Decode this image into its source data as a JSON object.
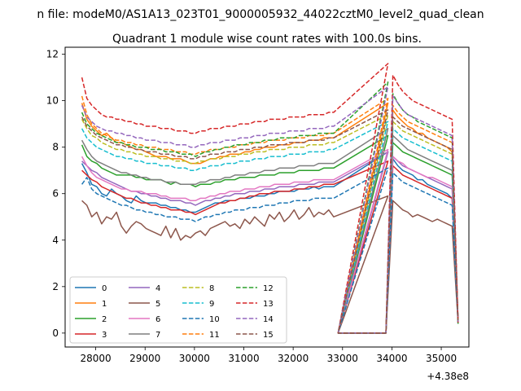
{
  "figure": {
    "suptitle": "n file: modeM0/AS1A13_023T01_9000005932_44022cztM0_level2_quad_clean",
    "title": "Quadrant 1 module wise count rates with 100.0s bins."
  },
  "chart_data": {
    "type": "line",
    "title": "Quadrant 1 module wise count rates with 100.0s bins.",
    "xlabel": "",
    "ylabel": "",
    "x_offset_label": "+4.38e8",
    "xlim": [
      27380,
      35560
    ],
    "ylim": [
      -0.6,
      12.3
    ],
    "xticks": [
      28000,
      29000,
      30000,
      31000,
      32000,
      33000,
      34000,
      35000
    ],
    "yticks": [
      0,
      2,
      4,
      6,
      8,
      10,
      12
    ],
    "grid": false,
    "legend": {
      "placement": "lower-left",
      "columns": 4
    },
    "bin_s": 100,
    "segments": [
      {
        "x_start": 27720,
        "x_end": 32870
      },
      {
        "x_start": 33920,
        "x_end": 35320
      }
    ],
    "x_notes": "x values are seconds relative to 4.38e8, sampled every 100 s within each segment; count rate is 0 between segments.",
    "series": [
      {
        "name": "0",
        "color": "#1f77b4",
        "style": "solid",
        "values": [
          7.3,
          6.9,
          6.4,
          6.3,
          6.0,
          5.9,
          6.2,
          6.0,
          5.9,
          5.7,
          5.6,
          5.9,
          5.7,
          5.6,
          5.6,
          5.6,
          5.5,
          5.5,
          5.4,
          5.4,
          5.3,
          5.3,
          5.2,
          5.2,
          5.3,
          5.4,
          5.5,
          5.6,
          5.6,
          5.7,
          5.7,
          5.7,
          5.8,
          5.8,
          5.8,
          5.9,
          5.9,
          5.9,
          6.0,
          6.0,
          6.1,
          6.1,
          6.1,
          6.1,
          6.2,
          6.2,
          6.2,
          6.3,
          6.2,
          6.3,
          6.3,
          6.3,
          7.8,
          7.5,
          7.2,
          7.0,
          6.9,
          6.8,
          6.6,
          6.6,
          6.4,
          6.3,
          6.2,
          6.1,
          6.0,
          5.8
        ]
      },
      {
        "name": "1",
        "color": "#ff7f0e",
        "style": "solid",
        "values": [
          9.9,
          9.2,
          8.9,
          8.7,
          8.5,
          8.6,
          8.4,
          8.2,
          8.2,
          8.1,
          8.0,
          7.9,
          7.9,
          7.8,
          7.7,
          7.6,
          7.6,
          7.6,
          7.5,
          7.5,
          7.5,
          7.4,
          7.3,
          7.3,
          7.3,
          7.4,
          7.5,
          7.5,
          7.6,
          7.6,
          7.7,
          7.7,
          7.7,
          7.8,
          7.8,
          7.9,
          7.9,
          8.0,
          8.0,
          8.0,
          8.1,
          8.1,
          8.1,
          8.2,
          8.2,
          8.2,
          8.3,
          8.3,
          8.3,
          8.4,
          8.4,
          8.4,
          9.9,
          9.6,
          9.3,
          9.1,
          8.9,
          8.8,
          8.6,
          8.6,
          8.4,
          8.3,
          8.2,
          8.1,
          8.0,
          7.8
        ]
      },
      {
        "name": "2",
        "color": "#2ca02c",
        "style": "solid",
        "values": [
          8.1,
          7.6,
          7.4,
          7.3,
          7.1,
          7.0,
          6.9,
          6.8,
          6.8,
          6.8,
          6.8,
          6.7,
          6.7,
          6.6,
          6.6,
          6.6,
          6.6,
          6.5,
          6.4,
          6.5,
          6.4,
          6.4,
          6.4,
          6.3,
          6.4,
          6.4,
          6.4,
          6.5,
          6.5,
          6.6,
          6.6,
          6.6,
          6.7,
          6.7,
          6.7,
          6.7,
          6.8,
          6.8,
          6.8,
          6.8,
          6.9,
          6.9,
          6.9,
          6.9,
          7.0,
          7.0,
          7.0,
          7.0,
          7.0,
          7.1,
          7.1,
          7.1,
          8.5,
          8.2,
          8.0,
          7.8,
          7.7,
          7.6,
          7.5,
          7.4,
          7.3,
          7.2,
          7.1,
          7.0,
          6.9,
          6.8
        ]
      },
      {
        "name": "3",
        "color": "#d62728",
        "style": "solid",
        "values": [
          7.0,
          6.8,
          6.6,
          6.5,
          6.3,
          6.2,
          6.1,
          6.0,
          5.9,
          5.8,
          5.8,
          5.7,
          5.6,
          5.6,
          5.5,
          5.5,
          5.4,
          5.4,
          5.3,
          5.3,
          5.3,
          5.2,
          5.2,
          5.1,
          5.2,
          5.3,
          5.4,
          5.5,
          5.6,
          5.6,
          5.7,
          5.7,
          5.8,
          5.8,
          5.9,
          5.9,
          6.0,
          6.0,
          6.0,
          6.1,
          6.1,
          6.1,
          6.1,
          6.2,
          6.2,
          6.2,
          6.3,
          6.3,
          6.3,
          6.4,
          6.4,
          6.4,
          7.4,
          7.2,
          7.0,
          6.8,
          6.7,
          6.6,
          6.5,
          6.4,
          6.3,
          6.2,
          6.1,
          6.0,
          5.9,
          5.8
        ]
      },
      {
        "name": "4",
        "color": "#9467bd",
        "style": "solid",
        "values": [
          7.4,
          7.2,
          7.0,
          6.9,
          6.7,
          6.6,
          6.5,
          6.4,
          6.3,
          6.2,
          6.1,
          6.1,
          6.0,
          6.0,
          5.9,
          5.9,
          5.8,
          5.8,
          5.7,
          5.7,
          5.7,
          5.6,
          5.6,
          5.5,
          5.6,
          5.7,
          5.7,
          5.8,
          5.8,
          5.9,
          5.9,
          6.0,
          6.0,
          6.0,
          6.1,
          6.1,
          6.1,
          6.2,
          6.2,
          6.2,
          6.3,
          6.3,
          6.3,
          6.3,
          6.4,
          6.4,
          6.4,
          6.4,
          6.5,
          6.5,
          6.5,
          6.5,
          7.8,
          7.6,
          7.4,
          7.2,
          7.1,
          7.0,
          6.9,
          6.8,
          6.7,
          6.6,
          6.5,
          6.4,
          6.3,
          6.2
        ]
      },
      {
        "name": "5",
        "color": "#8c564b",
        "style": "solid",
        "values": [
          5.7,
          5.5,
          5.0,
          5.2,
          4.7,
          5.0,
          4.9,
          5.2,
          4.6,
          4.3,
          4.6,
          4.8,
          4.7,
          4.5,
          4.4,
          4.3,
          4.2,
          4.6,
          4.1,
          4.5,
          4.0,
          4.2,
          4.1,
          4.3,
          4.4,
          4.2,
          4.5,
          4.6,
          4.7,
          4.8,
          4.6,
          4.7,
          4.5,
          4.9,
          4.7,
          5.0,
          4.8,
          4.6,
          5.1,
          4.9,
          5.2,
          4.8,
          5.0,
          5.3,
          4.9,
          5.1,
          5.4,
          5.0,
          5.2,
          5.1,
          5.3,
          5.0,
          5.9,
          5.7,
          5.5,
          5.3,
          5.2,
          5.0,
          5.1,
          5.0,
          4.9,
          4.8,
          4.9,
          4.8,
          4.7,
          4.6
        ]
      },
      {
        "name": "6",
        "color": "#e377c2",
        "style": "solid",
        "values": [
          7.6,
          7.2,
          6.9,
          6.7,
          6.6,
          6.5,
          6.4,
          6.3,
          6.2,
          6.2,
          6.1,
          6.1,
          6.1,
          6.0,
          6.0,
          6.0,
          5.9,
          5.9,
          5.8,
          5.8,
          5.8,
          5.8,
          5.7,
          5.7,
          5.8,
          5.8,
          5.9,
          5.9,
          6.0,
          6.0,
          6.1,
          6.1,
          6.1,
          6.2,
          6.2,
          6.2,
          6.3,
          6.3,
          6.3,
          6.4,
          6.4,
          6.4,
          6.4,
          6.5,
          6.5,
          6.5,
          6.5,
          6.6,
          6.6,
          6.6,
          6.6,
          6.6,
          7.9,
          7.6,
          7.4,
          7.3,
          7.1,
          7.0,
          6.9,
          6.8,
          6.7,
          6.7,
          6.6,
          6.5,
          6.4,
          6.3
        ]
      },
      {
        "name": "7",
        "color": "#7f7f7f",
        "style": "solid",
        "values": [
          8.3,
          7.9,
          7.6,
          7.4,
          7.3,
          7.2,
          7.1,
          7.0,
          6.9,
          6.9,
          6.8,
          6.8,
          6.7,
          6.7,
          6.6,
          6.6,
          6.6,
          6.5,
          6.5,
          6.5,
          6.4,
          6.4,
          6.4,
          6.4,
          6.5,
          6.5,
          6.6,
          6.6,
          6.6,
          6.7,
          6.7,
          6.8,
          6.8,
          6.8,
          6.9,
          6.9,
          6.9,
          7.0,
          7.0,
          7.0,
          7.1,
          7.1,
          7.1,
          7.1,
          7.2,
          7.2,
          7.2,
          7.2,
          7.3,
          7.3,
          7.3,
          7.3,
          8.8,
          8.5,
          8.3,
          8.1,
          7.9,
          7.8,
          7.7,
          7.6,
          7.5,
          7.4,
          7.3,
          7.2,
          7.1,
          7.0
        ]
      },
      {
        "name": "8",
        "color": "#bcbd22",
        "style": "dashed",
        "values": [
          9.2,
          8.8,
          8.5,
          8.4,
          8.2,
          8.1,
          8.0,
          7.9,
          7.9,
          7.8,
          7.8,
          7.7,
          7.7,
          7.6,
          7.6,
          7.6,
          7.5,
          7.5,
          7.5,
          7.4,
          7.4,
          7.4,
          7.3,
          7.3,
          7.4,
          7.4,
          7.5,
          7.5,
          7.5,
          7.6,
          7.6,
          7.6,
          7.7,
          7.7,
          7.7,
          7.8,
          7.8,
          7.8,
          7.9,
          7.9,
          7.9,
          7.9,
          8.0,
          8.0,
          8.0,
          8.0,
          8.1,
          8.1,
          8.1,
          8.1,
          8.2,
          8.2,
          9.4,
          9.1,
          8.9,
          8.7,
          8.6,
          8.5,
          8.4,
          8.3,
          8.2,
          8.1,
          8.0,
          7.9,
          7.8,
          7.7
        ]
      },
      {
        "name": "9",
        "color": "#17becf",
        "style": "dashed",
        "values": [
          8.8,
          8.4,
          8.2,
          8.0,
          7.9,
          7.8,
          7.7,
          7.6,
          7.6,
          7.5,
          7.5,
          7.4,
          7.4,
          7.3,
          7.3,
          7.3,
          7.2,
          7.2,
          7.2,
          7.1,
          7.1,
          7.1,
          7.0,
          7.0,
          7.1,
          7.1,
          7.2,
          7.2,
          7.2,
          7.3,
          7.3,
          7.3,
          7.4,
          7.4,
          7.4,
          7.5,
          7.5,
          7.5,
          7.6,
          7.6,
          7.6,
          7.6,
          7.7,
          7.7,
          7.7,
          7.7,
          7.8,
          7.8,
          7.8,
          7.8,
          7.9,
          7.9,
          9.1,
          8.8,
          8.6,
          8.4,
          8.3,
          8.2,
          8.1,
          8.0,
          7.9,
          7.8,
          7.7,
          7.6,
          7.5,
          7.4
        ]
      },
      {
        "name": "10",
        "color": "#1f77b4",
        "style": "dashed",
        "values": [
          6.4,
          6.7,
          6.2,
          6.0,
          5.9,
          5.8,
          5.7,
          5.6,
          5.5,
          5.5,
          5.4,
          5.3,
          5.3,
          5.2,
          5.2,
          5.1,
          5.1,
          5.0,
          5.0,
          5.0,
          4.9,
          4.9,
          4.9,
          4.8,
          4.9,
          5.0,
          5.0,
          5.1,
          5.1,
          5.2,
          5.2,
          5.3,
          5.3,
          5.3,
          5.4,
          5.4,
          5.4,
          5.5,
          5.5,
          5.5,
          5.6,
          5.6,
          5.6,
          5.7,
          5.7,
          5.7,
          5.7,
          5.8,
          5.8,
          5.8,
          5.8,
          5.8,
          7.1,
          6.9,
          6.7,
          6.5,
          6.4,
          6.3,
          6.2,
          6.1,
          6.0,
          5.9,
          5.8,
          5.7,
          5.6,
          5.5
        ]
      },
      {
        "name": "11",
        "color": "#ff7f0e",
        "style": "dashed",
        "values": [
          10.2,
          9.4,
          9.0,
          8.8,
          8.6,
          8.5,
          8.4,
          8.3,
          8.3,
          8.2,
          8.2,
          8.1,
          8.1,
          8.0,
          8.0,
          8.0,
          7.9,
          7.9,
          7.9,
          7.8,
          7.8,
          7.8,
          7.7,
          7.7,
          7.8,
          7.8,
          7.9,
          7.9,
          7.9,
          8.0,
          8.0,
          8.0,
          8.1,
          8.1,
          8.1,
          8.2,
          8.2,
          8.2,
          8.3,
          8.3,
          8.3,
          8.3,
          8.4,
          8.4,
          8.4,
          8.4,
          8.5,
          8.5,
          8.5,
          8.5,
          8.6,
          8.6,
          10.1,
          9.8,
          9.5,
          9.3,
          9.1,
          9.0,
          8.9,
          8.8,
          8.7,
          8.6,
          8.5,
          8.4,
          8.3,
          8.2
        ]
      },
      {
        "name": "12",
        "color": "#2ca02c",
        "style": "dashed",
        "values": [
          9.5,
          9.0,
          8.8,
          8.6,
          8.5,
          8.4,
          8.3,
          8.2,
          8.2,
          8.1,
          8.1,
          8.0,
          8.0,
          8.0,
          7.9,
          7.9,
          7.9,
          7.8,
          7.8,
          7.8,
          7.7,
          7.7,
          7.7,
          7.6,
          7.7,
          7.8,
          7.8,
          7.9,
          7.9,
          8.0,
          8.0,
          8.1,
          8.1,
          8.1,
          8.2,
          8.2,
          8.2,
          8.3,
          8.3,
          8.3,
          8.4,
          8.4,
          8.4,
          8.4,
          8.5,
          8.5,
          8.5,
          8.5,
          8.6,
          8.6,
          8.6,
          8.6,
          10.8,
          10.3,
          9.9,
          9.6,
          9.4,
          9.3,
          9.1,
          9.0,
          8.9,
          8.8,
          8.7,
          8.6,
          8.5,
          8.4
        ]
      },
      {
        "name": "13",
        "color": "#d62728",
        "style": "dashed",
        "values": [
          11.0,
          10.1,
          9.8,
          9.6,
          9.4,
          9.3,
          9.3,
          9.2,
          9.2,
          9.1,
          9.1,
          9.0,
          9.0,
          8.9,
          8.9,
          8.9,
          8.8,
          8.8,
          8.8,
          8.7,
          8.7,
          8.7,
          8.6,
          8.6,
          8.7,
          8.7,
          8.8,
          8.8,
          8.8,
          8.9,
          8.9,
          8.9,
          9.0,
          9.0,
          9.0,
          9.1,
          9.1,
          9.1,
          9.2,
          9.2,
          9.2,
          9.2,
          9.3,
          9.3,
          9.3,
          9.3,
          9.4,
          9.4,
          9.4,
          9.4,
          9.5,
          9.5,
          11.6,
          11.1,
          10.7,
          10.4,
          10.2,
          10.0,
          9.9,
          9.8,
          9.7,
          9.6,
          9.5,
          9.4,
          9.3,
          9.2
        ]
      },
      {
        "name": "14",
        "color": "#9467bd",
        "style": "dashed",
        "values": [
          9.8,
          9.3,
          9.1,
          8.9,
          8.8,
          8.7,
          8.7,
          8.6,
          8.6,
          8.5,
          8.5,
          8.4,
          8.4,
          8.3,
          8.3,
          8.3,
          8.2,
          8.2,
          8.2,
          8.1,
          8.1,
          8.1,
          8.0,
          8.0,
          8.1,
          8.1,
          8.2,
          8.2,
          8.2,
          8.3,
          8.3,
          8.3,
          8.4,
          8.4,
          8.4,
          8.5,
          8.5,
          8.5,
          8.6,
          8.6,
          8.6,
          8.6,
          8.7,
          8.7,
          8.7,
          8.7,
          8.8,
          8.8,
          8.8,
          8.8,
          8.9,
          8.9,
          10.6,
          10.2,
          9.9,
          9.6,
          9.4,
          9.3,
          9.2,
          9.1,
          9.0,
          8.9,
          8.8,
          8.7,
          8.6,
          8.5
        ]
      },
      {
        "name": "15",
        "color": "#8c564b",
        "style": "dashed",
        "values": [
          9.3,
          8.9,
          8.7,
          8.5,
          8.4,
          8.3,
          8.2,
          8.1,
          8.1,
          8.0,
          8.0,
          7.9,
          7.9,
          7.8,
          7.8,
          7.8,
          7.7,
          7.7,
          7.7,
          7.6,
          7.6,
          7.6,
          7.5,
          7.5,
          7.6,
          7.6,
          7.7,
          7.7,
          7.7,
          7.8,
          7.8,
          7.8,
          7.9,
          7.9,
          7.9,
          8.0,
          8.0,
          8.0,
          8.1,
          8.1,
          8.1,
          8.1,
          8.2,
          8.2,
          8.2,
          8.2,
          8.3,
          8.3,
          8.3,
          8.3,
          8.4,
          8.4,
          9.6,
          9.3,
          9.1,
          8.9,
          8.8,
          8.7,
          8.6,
          8.5,
          8.4,
          8.3,
          8.2,
          8.1,
          8.0,
          7.9
        ]
      }
    ]
  }
}
